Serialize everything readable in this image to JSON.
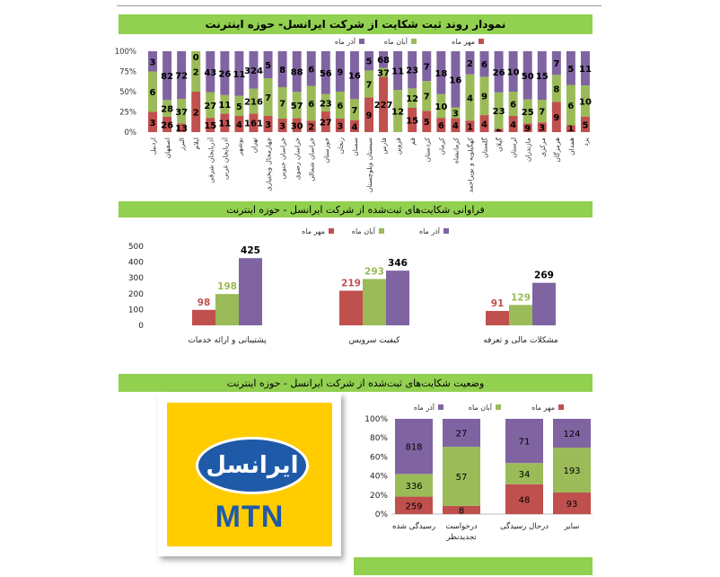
{
  "charts": [
    {
      "banner": "نمودار روند ثبت شکایت از شرکت ایرانسل- حوزه اینترنت"
    },
    {
      "banner": "فراوانی شکایت‌های ثبت‌شده از شرکت ایرانسل - حوزه اینترنت"
    },
    {
      "banner": "وضعیت شکایت‌های ثبت‌شده از شرکت ایرانسل - حوزه اینترنت"
    }
  ],
  "logo": {
    "fa_text": "ایرانسل",
    "en_text": "MTN"
  },
  "colors": {
    "mehr": "#c0504d",
    "aban": "#9bbb59",
    "azar": "#8064a2",
    "banner": "#92d050"
  },
  "chart_data": [
    {
      "type": "bar",
      "stacked": "percent",
      "legend_position": "top-right",
      "series_names": [
        "مهر ماه",
        "آبان ماه",
        "آذر ماه"
      ],
      "yticks": [
        "0%",
        "25%",
        "50%",
        "75%",
        "100%"
      ],
      "categories": [
        "اردبیل",
        "اصفهان",
        "البرز",
        "ایلام",
        "آذربایجان شرقی",
        "آذربایجان غربی",
        "بوشهر",
        "تهران",
        "چهارمحال وبختیاری",
        "خراسان جنوبی",
        "خراسان رضوی",
        "خراسان شمالی",
        "خوزستان",
        "زنجان",
        "سمنان",
        "سیستان وبلوچستان",
        "فارس",
        "قزوین",
        "قم",
        "کردستان",
        "کرمان",
        "کرمانشاه",
        "کهگیلویه و بویراحمد",
        "گلستان",
        "گیلان",
        "لرستان",
        "مازندران",
        "مرکزی",
        "هرمزگان",
        "همدان",
        "یزد"
      ],
      "series": [
        {
          "name": "مهر ماه",
          "values": [
            3,
            26,
            13,
            2,
            15,
            11,
            4,
            161,
            3,
            3,
            30,
            2,
            27,
            3,
            4,
            9,
            227,
            0,
            15,
            5,
            6,
            4,
            1,
            4,
            2,
            4,
            9,
            3,
            9,
            1,
            5
          ]
        },
        {
          "name": "آبان ماه",
          "values": [
            6,
            28,
            37,
            2,
            27,
            11,
            5,
            216,
            7,
            7,
            57,
            6,
            23,
            6,
            7,
            7,
            37,
            12,
            12,
            7,
            10,
            3,
            4,
            9,
            23,
            6,
            25,
            7,
            8,
            6,
            10
          ]
        },
        {
          "name": "آذر ماه",
          "values": [
            3,
            82,
            72,
            0,
            43,
            26,
            11,
            324,
            5,
            8,
            88,
            6,
            56,
            9,
            16,
            5,
            68,
            11,
            23,
            7,
            18,
            16,
            2,
            6,
            26,
            10,
            50,
            15,
            7,
            5,
            11
          ]
        }
      ],
      "value_labels": [
        [
          "3",
          "26",
          "13",
          "2",
          "15",
          "11",
          "4",
          "161",
          "3",
          "3",
          "30",
          "2",
          "27",
          "3",
          "4",
          "9",
          "227",
          "0",
          "15",
          "5",
          "6",
          "4",
          "1",
          "4",
          "2",
          "4",
          "9",
          "3",
          "9",
          "1",
          "5"
        ],
        [
          "6",
          "28",
          "37",
          "2",
          "27",
          "11",
          "5",
          "216",
          "7",
          "7",
          "57",
          "6",
          "23",
          "6",
          "7",
          "7",
          "37",
          "12",
          "12",
          "7",
          "10",
          "3",
          "4",
          "9",
          "23",
          "6",
          "25",
          "7",
          "8",
          "6",
          "10"
        ],
        [
          "3",
          "82",
          "72",
          "0",
          "43",
          "26",
          "11",
          "324",
          "5",
          "8",
          "88",
          "6",
          "56",
          "9",
          "16",
          "5",
          "68",
          "11",
          "23",
          "7",
          "18",
          "16",
          "2",
          "6",
          "26",
          "10",
          "50",
          "15",
          "7",
          "5",
          "11"
        ]
      ]
    },
    {
      "type": "bar",
      "legend_position": "top-right",
      "series_names": [
        "مهر ماه",
        "آبان ماه",
        "آذر ماه"
      ],
      "ylim": [
        0,
        500
      ],
      "yticks": [
        "0",
        "100",
        "200",
        "300",
        "400",
        "500"
      ],
      "categories": [
        "پشتیبانی و ارائه خدمات",
        "کیفیت سرویس",
        "مشکلات مالی و تعرفه"
      ],
      "series": [
        {
          "name": "مهر ماه",
          "values": [
            98,
            219,
            91
          ]
        },
        {
          "name": "آبان ماه",
          "values": [
            198,
            293,
            129
          ]
        },
        {
          "name": "آذر ماه",
          "values": [
            425,
            346,
            269
          ]
        }
      ]
    },
    {
      "type": "bar",
      "stacked": "percent",
      "legend_position": "top",
      "series_names": [
        "مهر ماه",
        "آبان ماه",
        "آذر ماه"
      ],
      "yticks": [
        "0%",
        "20%",
        "40%",
        "60%",
        "80%",
        "100%"
      ],
      "categories": [
        "رسیدگی شده",
        "درخواست تجدیدنظر",
        "درحال رسیدگی",
        "سایر"
      ],
      "series": [
        {
          "name": "مهر ماه",
          "values": [
            259,
            8,
            48,
            93
          ]
        },
        {
          "name": "آبان ماه",
          "values": [
            336,
            57,
            34,
            193
          ]
        },
        {
          "name": "آذر ماه",
          "values": [
            818,
            27,
            71,
            124
          ]
        }
      ]
    }
  ]
}
